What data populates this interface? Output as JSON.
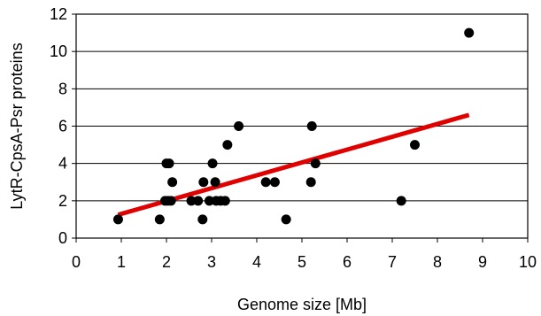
{
  "chart_data": {
    "type": "scatter",
    "xlabel": "Genome size [Mb]",
    "ylabel": "LytR-CpsA-Psr proteins",
    "xlim": [
      0,
      10
    ],
    "ylim": [
      0,
      12
    ],
    "x_ticks": [
      "0",
      "1",
      "2",
      "3",
      "4",
      "5",
      "6",
      "7",
      "8",
      "9",
      "10"
    ],
    "y_ticks": [
      "0",
      "2",
      "4",
      "6",
      "8",
      "10",
      "12"
    ],
    "grid": "horizontal",
    "legend": "none",
    "points": [
      {
        "x": 0.93,
        "y": 1
      },
      {
        "x": 1.85,
        "y": 1
      },
      {
        "x": 1.97,
        "y": 2
      },
      {
        "x": 2.0,
        "y": 4
      },
      {
        "x": 2.03,
        "y": 2
      },
      {
        "x": 2.06,
        "y": 4
      },
      {
        "x": 2.1,
        "y": 2
      },
      {
        "x": 2.13,
        "y": 3
      },
      {
        "x": 2.55,
        "y": 2
      },
      {
        "x": 2.7,
        "y": 2
      },
      {
        "x": 2.8,
        "y": 1
      },
      {
        "x": 2.82,
        "y": 3
      },
      {
        "x": 2.95,
        "y": 2
      },
      {
        "x": 3.02,
        "y": 4
      },
      {
        "x": 3.08,
        "y": 3
      },
      {
        "x": 3.1,
        "y": 2
      },
      {
        "x": 3.2,
        "y": 2
      },
      {
        "x": 3.3,
        "y": 2
      },
      {
        "x": 3.35,
        "y": 5
      },
      {
        "x": 3.6,
        "y": 6
      },
      {
        "x": 4.2,
        "y": 3
      },
      {
        "x": 4.4,
        "y": 3
      },
      {
        "x": 4.65,
        "y": 1
      },
      {
        "x": 5.2,
        "y": 3
      },
      {
        "x": 5.22,
        "y": 6
      },
      {
        "x": 5.3,
        "y": 4
      },
      {
        "x": 7.2,
        "y": 2
      },
      {
        "x": 7.5,
        "y": 5
      },
      {
        "x": 8.7,
        "y": 11
      }
    ],
    "trendline": {
      "x": [
        0.93,
        8.7
      ],
      "y": [
        1.25,
        6.6
      ]
    },
    "colors": {
      "points": "#000000",
      "trendline": "#e00000",
      "grid": "#000000"
    }
  }
}
